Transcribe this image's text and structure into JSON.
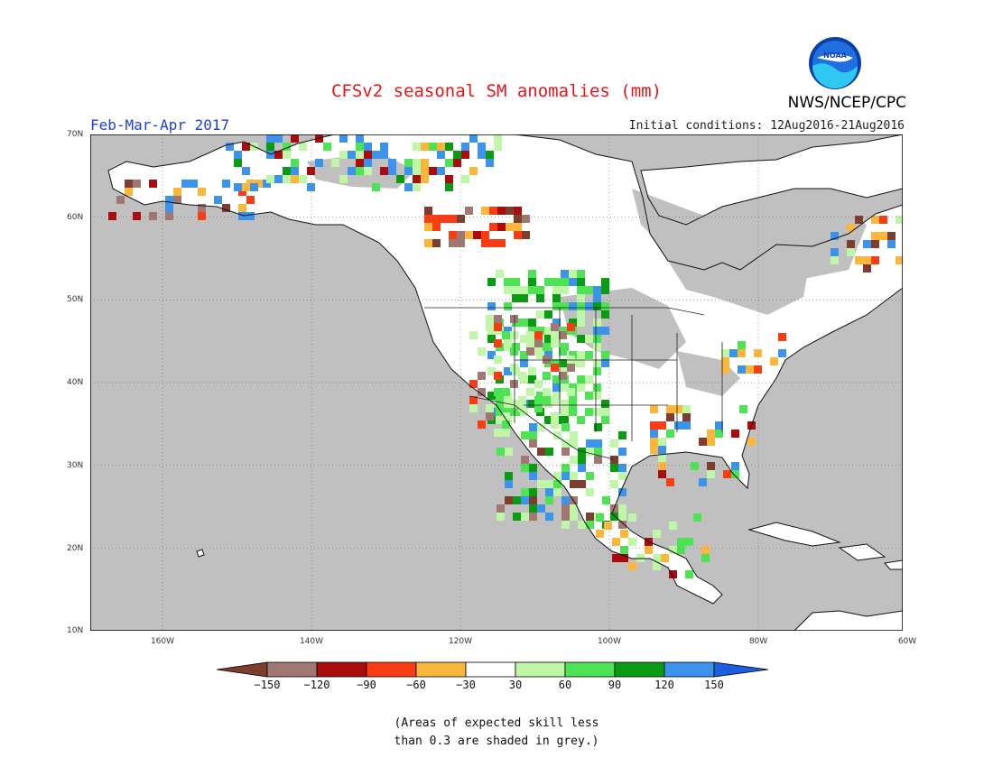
{
  "header": {
    "title": "CFSv2 seasonal SM anomalies (mm)",
    "period": "Feb-Mar-Apr 2017",
    "initial_conditions": "Initial conditions: 12Aug2016-21Aug2016",
    "agency": "NWS/NCEP/CPC",
    "logo_text": "NOAA"
  },
  "map": {
    "lat_labels": [
      "70N",
      "60N",
      "50N",
      "40N",
      "30N",
      "20N",
      "10N"
    ],
    "lon_labels": [
      "160W",
      "140W",
      "120W",
      "100W",
      "80W",
      "60W"
    ],
    "grey_meaning": "skill less than 0.3",
    "colors": {
      "ocean_grey": "#c0c0c0",
      "land_white": "#ffffff"
    }
  },
  "legend": {
    "ticks": [
      "−150",
      "−120",
      "−90",
      "−60",
      "−30",
      "30",
      "60",
      "90",
      "120",
      "150"
    ],
    "colors": [
      "#7e3e2f",
      "#a07772",
      "#a90c0c",
      "#fa3c13",
      "#fbb63c",
      "#ffffff",
      "#bff6a7",
      "#4ee354",
      "#099b12",
      "#3c93eb",
      "#1c5fde"
    ]
  },
  "footnote": {
    "line1": "(Areas of expected skill less",
    "line2": "than 0.3 are shaded in grey.)"
  }
}
